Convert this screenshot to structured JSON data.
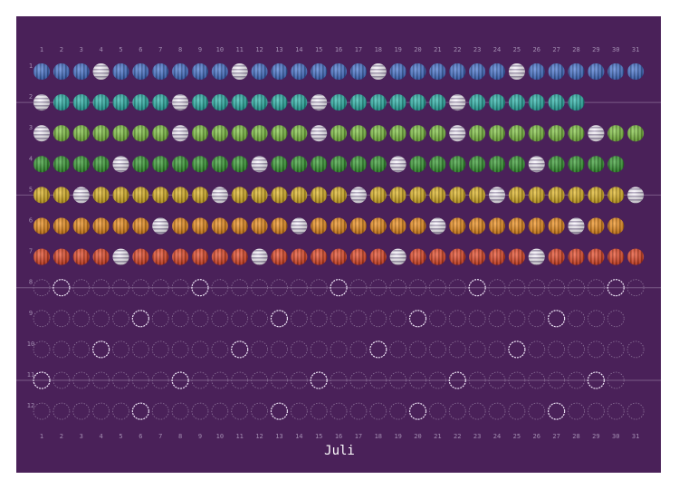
{
  "columns": [
    "1",
    "2",
    "3",
    "4",
    "5",
    "6",
    "7",
    "8",
    "9",
    "10",
    "11",
    "12",
    "13",
    "14",
    "15",
    "16",
    "17",
    "18",
    "19",
    "20",
    "21",
    "22",
    "23",
    "24",
    "25",
    "26",
    "27",
    "28",
    "29",
    "30",
    "31"
  ],
  "rows": [
    {
      "label": "1",
      "days": 31,
      "color": "#3f6fd0"
    },
    {
      "label": "2",
      "days": 28,
      "color": "#21b3a8"
    },
    {
      "label": "3",
      "days": 31,
      "color": "#7cc43a"
    },
    {
      "label": "4",
      "days": 30,
      "color": "#2f9a2a"
    },
    {
      "label": "5",
      "days": 31,
      "color": "#e0b318"
    },
    {
      "label": "6",
      "days": 30,
      "color": "#f08a10"
    },
    {
      "label": "7",
      "days": 31,
      "color": "#e8401c"
    },
    {
      "label": "8",
      "days": 31,
      "color": null
    },
    {
      "label": "9",
      "days": 30,
      "color": null
    },
    {
      "label": "10",
      "days": 31,
      "color": null
    },
    {
      "label": "11",
      "days": 30,
      "color": null
    },
    {
      "label": "12",
      "days": 31,
      "color": null
    }
  ],
  "footer": {
    "month": "Juli"
  }
}
